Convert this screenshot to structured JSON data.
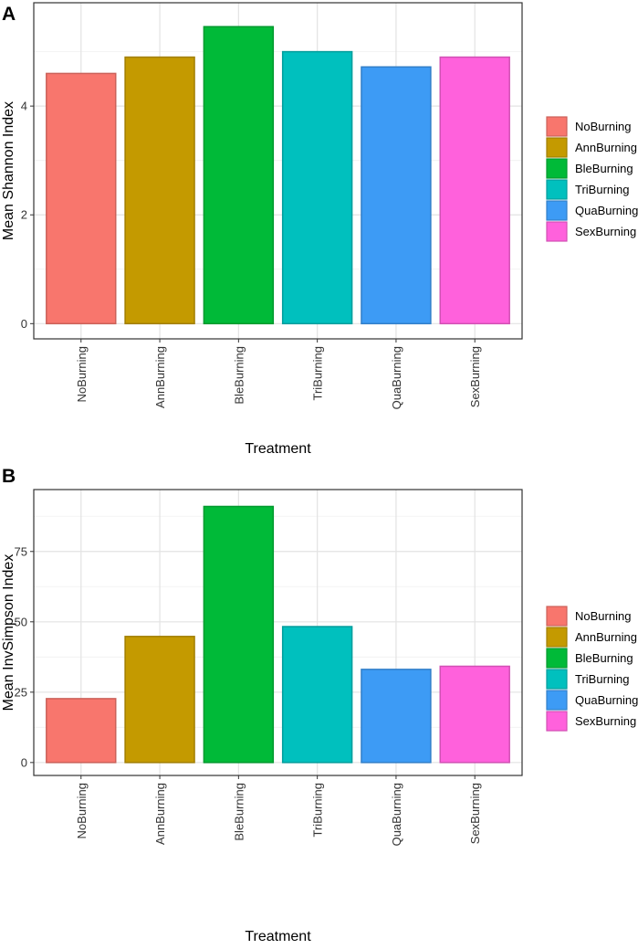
{
  "colors": {
    "NoBurning": "#F8766D",
    "AnnBurning": "#C49A00",
    "BleBurning": "#00BA38",
    "TriBurning": "#00C0BE",
    "QuaBurning": "#3D9BF5",
    "SexBurning": "#FF61DC",
    "grid": "#E3E3E3",
    "border": "#333333"
  },
  "chart_data": [
    {
      "panel_label": "A",
      "type": "bar",
      "title": "",
      "xlabel": "Treatment",
      "ylabel": "Mean Shannon Index",
      "categories": [
        "NoBurning",
        "AnnBurning",
        "BleBurning",
        "TriBurning",
        "QuaBurning",
        "SexBurning"
      ],
      "values": [
        4.6,
        4.9,
        5.46,
        5.0,
        4.72,
        4.9
      ],
      "ylim": [
        -0.28,
        5.9
      ],
      "yticks": [
        0,
        2,
        4
      ],
      "ytick_labels": [
        "0",
        "2",
        "4"
      ],
      "grid": true,
      "legend": {
        "position": "right",
        "entries": [
          "NoBurning",
          "AnnBurning",
          "BleBurning",
          "TriBurning",
          "QuaBurning",
          "SexBurning"
        ]
      }
    },
    {
      "panel_label": "B",
      "type": "bar",
      "title": "",
      "xlabel": "Treatment",
      "ylabel": "Mean InvSimpson Index",
      "categories": [
        "NoBurning",
        "AnnBurning",
        "BleBurning",
        "TriBurning",
        "QuaBurning",
        "SexBurning"
      ],
      "values": [
        22.7,
        44.8,
        91.0,
        48.3,
        33.1,
        34.2
      ],
      "ylim": [
        -4.6,
        97.0
      ],
      "yticks": [
        0,
        25,
        50,
        75
      ],
      "ytick_labels": [
        "0",
        "25",
        "50",
        "75"
      ],
      "grid": true,
      "legend": {
        "position": "right",
        "entries": [
          "NoBurning",
          "AnnBurning",
          "BleBurning",
          "TriBurning",
          "QuaBurning",
          "SexBurning"
        ]
      }
    }
  ]
}
